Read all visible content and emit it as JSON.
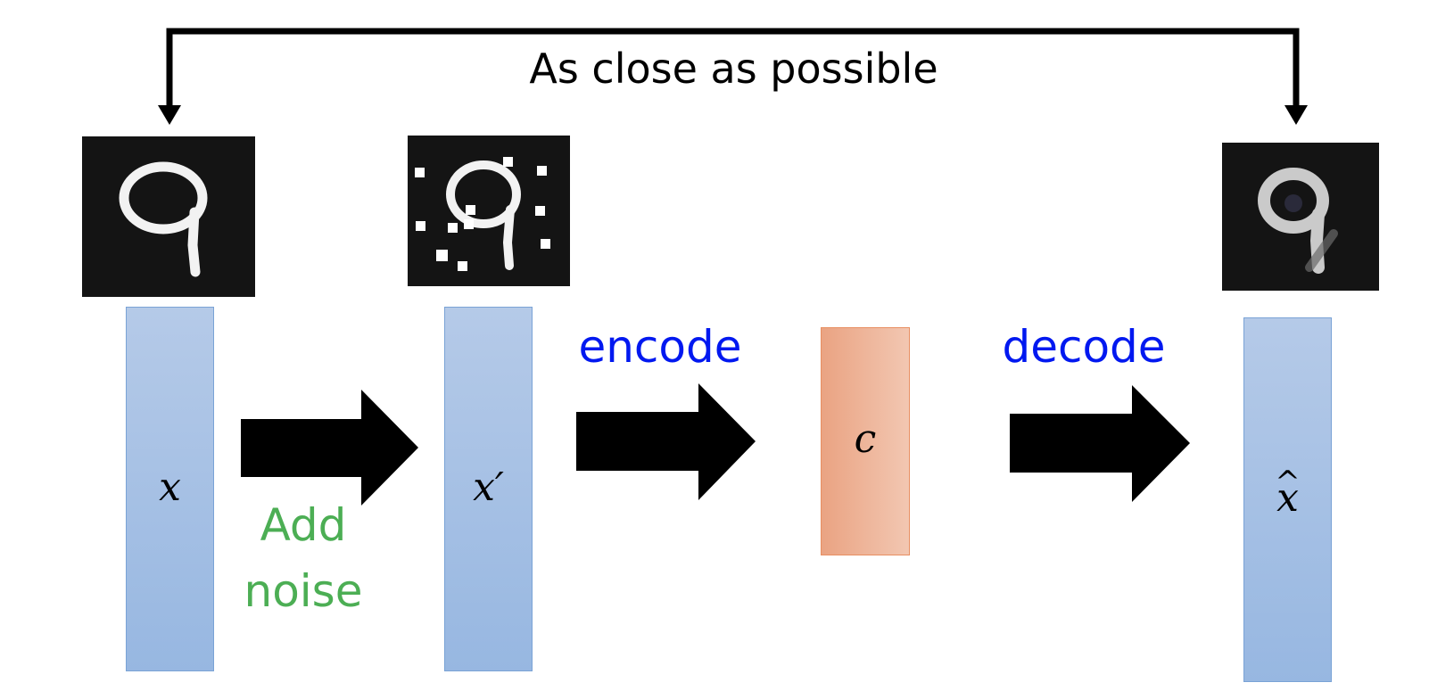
{
  "top_label": "As close as possible",
  "vectors": {
    "x": "x",
    "x_noisy": "x′",
    "code": "c",
    "x_hat_base": "x",
    "x_hat_mark": "^"
  },
  "operations": {
    "add_noise_line1": "Add",
    "add_noise_line2": "noise",
    "encode": "encode",
    "decode": "decode"
  },
  "colors": {
    "vector_fill": "#a7c1e5",
    "code_fill": "#eeb59a",
    "operation_text": "#0018f0",
    "noise_text": "#4cae54"
  },
  "images": {
    "input": "digit-9-original",
    "noisy": "digit-9-with-noise",
    "output": "digit-9-reconstructed"
  }
}
